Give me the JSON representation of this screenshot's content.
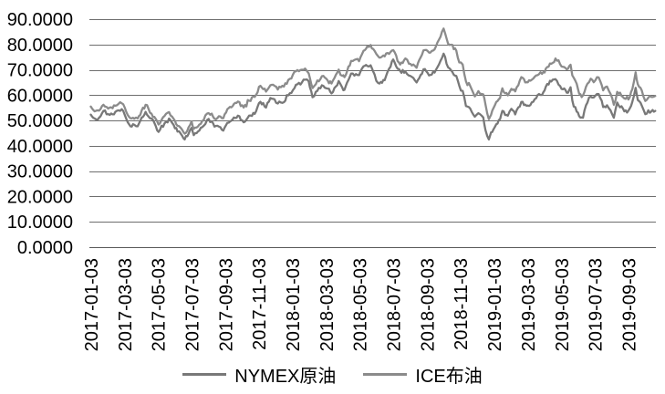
{
  "chart_data": {
    "type": "line",
    "title": "",
    "xlabel": "",
    "ylabel": "",
    "ylim": [
      0,
      90
    ],
    "ytick_step": 10,
    "grid": true,
    "legend_position": "bottom",
    "gridline_color": "#6e6e6e",
    "axis_line_color": "#595959",
    "text_color": "#000000",
    "ytick_labels": [
      "0.0000",
      "10.0000",
      "20.0000",
      "30.0000",
      "40.0000",
      "50.0000",
      "60.0000",
      "70.0000",
      "80.0000",
      "90.0000"
    ],
    "xtick_labels": [
      "2017-01-03",
      "2017-03-03",
      "2017-05-03",
      "2017-07-03",
      "2017-09-03",
      "2017-11-03",
      "2018-01-03",
      "2018-03-03",
      "2018-05-03",
      "2018-07-03",
      "2018-09-03",
      "2018-11-03",
      "2019-01-03",
      "2019-03-03",
      "2019-05-03",
      "2019-07-03",
      "2019-09-03"
    ],
    "series": [
      {
        "name": "NYMEX原油",
        "color": "#787878"
      },
      {
        "name": "ICE布油",
        "color": "#8b8b8b"
      }
    ],
    "columns": [
      "date",
      "NYMEX原油",
      "ICE布油"
    ],
    "rows": [
      [
        "2017-01-03",
        52.3,
        55.5
      ],
      [
        "2017-01-10",
        50.8,
        53.6
      ],
      [
        "2017-01-18",
        51.1,
        53.9
      ],
      [
        "2017-01-26",
        53.8,
        56.2
      ],
      [
        "2017-02-07",
        52.2,
        55.1
      ],
      [
        "2017-02-17",
        53.4,
        55.8
      ],
      [
        "2017-02-23",
        54.0,
        56.6
      ],
      [
        "2017-03-01",
        53.8,
        56.4
      ],
      [
        "2017-03-09",
        49.3,
        52.2
      ],
      [
        "2017-03-14",
        47.7,
        50.9
      ],
      [
        "2017-03-21",
        48.3,
        50.7
      ],
      [
        "2017-03-27",
        47.7,
        50.8
      ],
      [
        "2017-04-11",
        53.4,
        56.2
      ],
      [
        "2017-04-19",
        50.9,
        53.1
      ],
      [
        "2017-04-27",
        49.0,
        51.4
      ],
      [
        "2017-05-04",
        45.5,
        48.4
      ],
      [
        "2017-05-15",
        48.9,
        51.8
      ],
      [
        "2017-05-23",
        50.8,
        53.3
      ],
      [
        "2017-06-01",
        48.2,
        50.6
      ],
      [
        "2017-06-08",
        45.6,
        47.9
      ],
      [
        "2017-06-14",
        44.7,
        47.0
      ],
      [
        "2017-06-21",
        42.5,
        44.8
      ],
      [
        "2017-06-28",
        44.7,
        47.3
      ],
      [
        "2017-07-03",
        47.1,
        49.7
      ],
      [
        "2017-07-07",
        44.2,
        46.7
      ],
      [
        "2017-07-17",
        46.0,
        48.4
      ],
      [
        "2017-07-25",
        47.9,
        50.2
      ],
      [
        "2017-07-31",
        50.2,
        52.7
      ],
      [
        "2017-08-09",
        49.6,
        52.7
      ],
      [
        "2017-08-14",
        47.6,
        50.7
      ],
      [
        "2017-08-22",
        47.6,
        51.7
      ],
      [
        "2017-08-30",
        46.0,
        50.9
      ],
      [
        "2017-09-07",
        49.1,
        54.5
      ],
      [
        "2017-09-14",
        49.9,
        55.2
      ],
      [
        "2017-09-26",
        51.9,
        57.5
      ],
      [
        "2017-10-06",
        49.3,
        55.1
      ],
      [
        "2017-10-16",
        51.9,
        57.8
      ],
      [
        "2017-10-26",
        52.6,
        59.3
      ],
      [
        "2017-11-06",
        57.4,
        63.7
      ],
      [
        "2017-11-16",
        55.1,
        61.4
      ],
      [
        "2017-11-24",
        58.9,
        63.9
      ],
      [
        "2017-12-01",
        58.4,
        63.7
      ],
      [
        "2017-12-07",
        56.7,
        62.2
      ],
      [
        "2017-12-18",
        57.2,
        63.4
      ],
      [
        "2017-12-26",
        59.9,
        66.0
      ],
      [
        "2018-01-04",
        62.0,
        68.1
      ],
      [
        "2018-01-12",
        64.3,
        69.9
      ],
      [
        "2018-01-26",
        66.1,
        70.5
      ],
      [
        "2018-02-02",
        65.5,
        68.6
      ],
      [
        "2018-02-09",
        59.2,
        62.8
      ],
      [
        "2018-02-15",
        61.3,
        64.3
      ],
      [
        "2018-02-26",
        63.9,
        67.5
      ],
      [
        "2018-03-06",
        62.6,
        65.8
      ],
      [
        "2018-03-13",
        60.7,
        64.6
      ],
      [
        "2018-03-26",
        65.6,
        70.1
      ],
      [
        "2018-04-02",
        63.0,
        67.6
      ],
      [
        "2018-04-06",
        62.1,
        67.1
      ],
      [
        "2018-04-18",
        68.5,
        73.5
      ],
      [
        "2018-04-24",
        67.7,
        73.9
      ],
      [
        "2018-05-02",
        67.9,
        73.4
      ],
      [
        "2018-05-10",
        71.4,
        77.5
      ],
      [
        "2018-05-17",
        71.5,
        79.3
      ],
      [
        "2018-05-23",
        71.8,
        79.8
      ],
      [
        "2018-05-30",
        68.2,
        77.5
      ],
      [
        "2018-06-06",
        64.8,
        75.4
      ],
      [
        "2018-06-18",
        65.9,
        75.3
      ],
      [
        "2018-06-26",
        70.5,
        76.3
      ],
      [
        "2018-07-03",
        74.1,
        77.8
      ],
      [
        "2018-07-11",
        70.4,
        73.4
      ],
      [
        "2018-07-18",
        68.8,
        72.9
      ],
      [
        "2018-07-25",
        69.3,
        74.5
      ],
      [
        "2018-08-01",
        67.7,
        72.4
      ],
      [
        "2018-08-09",
        66.8,
        72.1
      ],
      [
        "2018-08-15",
        65.0,
        70.8
      ],
      [
        "2018-08-22",
        67.9,
        74.8
      ],
      [
        "2018-08-30",
        70.3,
        77.8
      ],
      [
        "2018-09-07",
        67.8,
        76.8
      ],
      [
        "2018-09-17",
        68.9,
        78.1
      ],
      [
        "2018-09-25",
        72.1,
        81.9
      ],
      [
        "2018-10-03",
        76.4,
        86.3
      ],
      [
        "2018-10-11",
        71.0,
        80.3
      ],
      [
        "2018-10-19",
        69.1,
        79.8
      ],
      [
        "2018-10-26",
        67.6,
        77.6
      ],
      [
        "2018-11-01",
        63.7,
        72.9
      ],
      [
        "2018-11-07",
        61.7,
        72.1
      ],
      [
        "2018-11-13",
        55.7,
        65.5
      ],
      [
        "2018-11-21",
        54.6,
        63.5
      ],
      [
        "2018-11-29",
        51.5,
        59.5
      ],
      [
        "2018-12-05",
        52.9,
        61.6
      ],
      [
        "2018-12-14",
        51.2,
        60.3
      ],
      [
        "2018-12-18",
        46.2,
        56.3
      ],
      [
        "2018-12-24",
        42.5,
        50.5
      ],
      [
        "2018-12-28",
        45.3,
        52.2
      ],
      [
        "2019-01-02",
        46.5,
        54.9
      ],
      [
        "2019-01-07",
        48.5,
        57.3
      ],
      [
        "2019-01-14",
        50.5,
        58.9
      ],
      [
        "2019-01-18",
        53.8,
        62.7
      ],
      [
        "2019-01-28",
        51.9,
        59.9
      ],
      [
        "2019-02-04",
        54.6,
        62.5
      ],
      [
        "2019-02-11",
        52.4,
        61.5
      ],
      [
        "2019-02-22",
        57.3,
        67.1
      ],
      [
        "2019-03-01",
        55.8,
        65.1
      ],
      [
        "2019-03-08",
        56.1,
        65.7
      ],
      [
        "2019-03-21",
        60.0,
        67.9
      ],
      [
        "2019-03-29",
        60.1,
        68.4
      ],
      [
        "2019-04-08",
        64.4,
        71.1
      ],
      [
        "2019-04-23",
        66.3,
        74.5
      ],
      [
        "2019-05-01",
        63.6,
        72.2
      ],
      [
        "2019-05-06",
        62.3,
        71.2
      ],
      [
        "2019-05-13",
        61.0,
        70.2
      ],
      [
        "2019-05-20",
        63.1,
        72.0
      ],
      [
        "2019-05-23",
        57.9,
        67.8
      ],
      [
        "2019-05-31",
        53.5,
        64.5
      ],
      [
        "2019-06-05",
        51.7,
        60.6
      ],
      [
        "2019-06-12",
        51.1,
        59.9
      ],
      [
        "2019-06-20",
        57.1,
        64.5
      ],
      [
        "2019-06-26",
        59.4,
        66.5
      ],
      [
        "2019-07-01",
        59.1,
        65.1
      ],
      [
        "2019-07-10",
        60.4,
        67.0
      ],
      [
        "2019-07-18",
        55.3,
        61.9
      ],
      [
        "2019-07-25",
        56.0,
        63.4
      ],
      [
        "2019-08-01",
        54.0,
        60.5
      ],
      [
        "2019-08-07",
        51.1,
        56.2
      ],
      [
        "2019-08-13",
        57.1,
        61.3
      ],
      [
        "2019-08-26",
        53.6,
        58.7
      ],
      [
        "2019-09-03",
        53.9,
        58.3
      ],
      [
        "2019-09-10",
        57.4,
        62.4
      ],
      [
        "2019-09-16",
        62.9,
        69.0
      ],
      [
        "2019-09-20",
        58.1,
        64.3
      ],
      [
        "2019-09-27",
        55.9,
        61.9
      ],
      [
        "2019-10-03",
        52.5,
        57.7
      ],
      [
        "2019-10-14",
        53.6,
        59.3
      ],
      [
        "2019-10-21",
        53.8,
        59.7
      ]
    ]
  }
}
